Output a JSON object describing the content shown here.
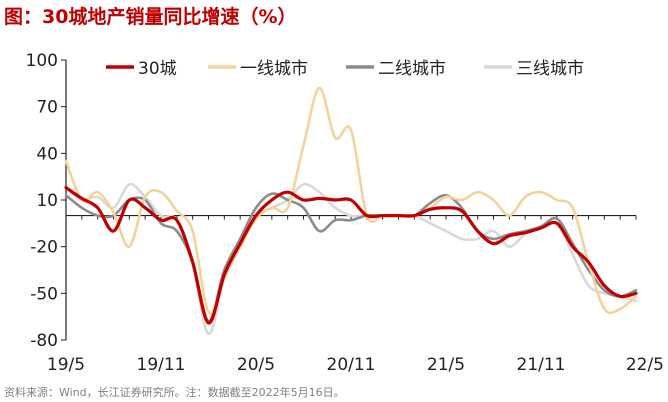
{
  "title": "图：30城地产销量同比增速（%）",
  "source": "资料来源：Wind，长江证券研究所。注：数据截至2022年5月16日。",
  "chart_data": {
    "type": "line",
    "ylim": [
      -80,
      100
    ],
    "yticks": [
      100,
      70,
      40,
      10,
      -20,
      -50,
      -80
    ],
    "xtick_labels": [
      "19/5",
      "19/11",
      "20/5",
      "20/11",
      "21/5",
      "21/11",
      "22/5"
    ],
    "xtick_index": [
      0,
      6,
      12,
      18,
      24,
      30,
      36
    ],
    "x_count": 37,
    "legend_position": "top",
    "series": [
      {
        "name": "30城",
        "color": "#c00000",
        "width": 3.2,
        "values": [
          18,
          11,
          5,
          -10,
          10,
          5,
          -3,
          -3,
          -30,
          -69,
          -38,
          -18,
          0,
          10,
          15,
          10,
          11,
          10,
          10,
          0,
          0,
          0,
          0,
          4,
          5,
          3,
          -10,
          -18,
          -13,
          -11,
          -8,
          -5,
          -20,
          -30,
          -45,
          -52,
          -50
        ]
      },
      {
        "name": "一线城市",
        "color": "#f2d39b",
        "width": 2.6,
        "values": [
          35,
          10,
          15,
          2,
          -20,
          12,
          15,
          3,
          -10,
          -62,
          -40,
          -20,
          -2,
          5,
          5,
          45,
          82,
          50,
          55,
          0,
          0,
          0,
          0,
          5,
          12,
          10,
          15,
          10,
          0,
          12,
          15,
          10,
          5,
          -30,
          -60,
          -60,
          -52
        ]
      },
      {
        "name": "二线城市",
        "color": "#8c8c8c",
        "width": 2.6,
        "values": [
          13,
          5,
          0,
          0,
          10,
          10,
          -5,
          -10,
          -30,
          -68,
          -35,
          -15,
          5,
          14,
          10,
          5,
          -10,
          -3,
          -3,
          0,
          0,
          0,
          0,
          8,
          13,
          5,
          -10,
          -15,
          -12,
          -10,
          -7,
          -2,
          -18,
          -35,
          -48,
          -52,
          -48
        ]
      },
      {
        "name": "三线城市",
        "color": "#d9d9d9",
        "width": 2.6,
        "values": [
          18,
          10,
          12,
          5,
          20,
          12,
          0,
          -3,
          -32,
          -76,
          -40,
          -15,
          0,
          5,
          10,
          20,
          15,
          5,
          0,
          0,
          0,
          0,
          0,
          -5,
          -10,
          -15,
          -15,
          -10,
          -20,
          -12,
          -8,
          -5,
          -25,
          -45,
          -50,
          -52,
          -55
        ]
      }
    ]
  }
}
